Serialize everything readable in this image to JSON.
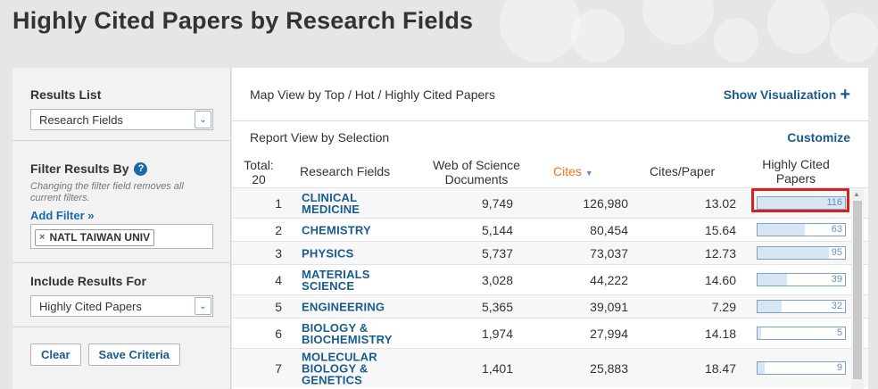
{
  "page": {
    "title": "Highly Cited Papers by Research Fields"
  },
  "left": {
    "results_list": {
      "label": "Results List",
      "selected": "Research Fields"
    },
    "filter": {
      "label": "Filter Results By",
      "hint": "Changing the filter field removes all current filters.",
      "add_filter": "Add Filter »",
      "tag": "NATL TAIWAN UNIV",
      "tag_remove": "×"
    },
    "include": {
      "label": "Include Results For",
      "selected": "Highly Cited Papers"
    },
    "buttons": {
      "clear": "Clear",
      "save": "Save Criteria"
    }
  },
  "right": {
    "map_view": "Map View by Top / Hot / Highly Cited Papers",
    "show_viz": "Show Visualization",
    "report_view": "Report View by Selection",
    "customize": "Customize",
    "columns": {
      "total": "Total:",
      "total_count": "20",
      "field": "Research Fields",
      "wos": "Web of Science Documents",
      "cites": "Cites",
      "cpp": "Cites/Paper",
      "hc": "Highly Cited Papers"
    },
    "rows": [
      {
        "rank": "1",
        "field": "CLINICAL MEDICINE",
        "wos": "9,749",
        "cites": "126,980",
        "cpp": "13.02",
        "hc": "116",
        "hc_fraction": 1.0
      },
      {
        "rank": "2",
        "field": "CHEMISTRY",
        "wos": "5,144",
        "cites": "80,454",
        "cpp": "15.64",
        "hc": "63",
        "hc_fraction": 0.543
      },
      {
        "rank": "3",
        "field": "PHYSICS",
        "wos": "5,737",
        "cites": "73,037",
        "cpp": "12.73",
        "hc": "95",
        "hc_fraction": 0.819
      },
      {
        "rank": "4",
        "field": "MATERIALS SCIENCE",
        "wos": "3,028",
        "cites": "44,222",
        "cpp": "14.60",
        "hc": "39",
        "hc_fraction": 0.336
      },
      {
        "rank": "5",
        "field": "ENGINEERING",
        "wos": "5,365",
        "cites": "39,091",
        "cpp": "7.29",
        "hc": "32",
        "hc_fraction": 0.276
      },
      {
        "rank": "6",
        "field": "BIOLOGY & BIOCHEMISTRY",
        "wos": "1,974",
        "cites": "27,994",
        "cpp": "14.18",
        "hc": "5",
        "hc_fraction": 0.043
      },
      {
        "rank": "7",
        "field": "MOLECULAR BIOLOGY & GENETICS",
        "wos": "1,401",
        "cites": "25,883",
        "cpp": "18.47",
        "hc": "9",
        "hc_fraction": 0.078
      }
    ]
  }
}
